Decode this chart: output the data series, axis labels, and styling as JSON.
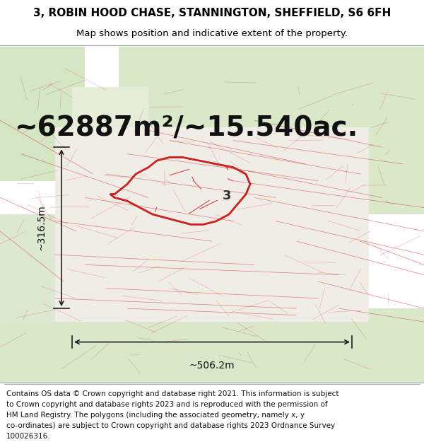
{
  "title": "3, ROBIN HOOD CHASE, STANNINGTON, SHEFFIELD, S6 6FH",
  "subtitle": "Map shows position and indicative extent of the property.",
  "area_text": "~62887m²/~15.540ac.",
  "width_label": "~506.2m",
  "height_label": "~316.5m",
  "plot_number": "3",
  "footer_lines": [
    "Contains OS data © Crown copyright and database right 2021. This information is subject",
    "to Crown copyright and database rights 2023 and is reproduced with the permission of",
    "HM Land Registry. The polygons (including the associated geometry, namely x, y",
    "co-ordinates) are subject to Crown copyright and database rights 2023 Ordnance Survey",
    "100026316."
  ],
  "title_fontsize": 11,
  "subtitle_fontsize": 9.5,
  "area_fontsize": 28,
  "label_fontsize": 10,
  "footer_fontsize": 7.5,
  "map_green_light": "#d4e6c3",
  "map_green_mid": "#dde8d0",
  "map_green_dark": "#d8e8c8",
  "map_center_bg": "#f0ede6",
  "map_bg": "#e8e8e8",
  "red_color": "#cc2222",
  "text_color": "#111111",
  "line_color": "#aaaaaa"
}
